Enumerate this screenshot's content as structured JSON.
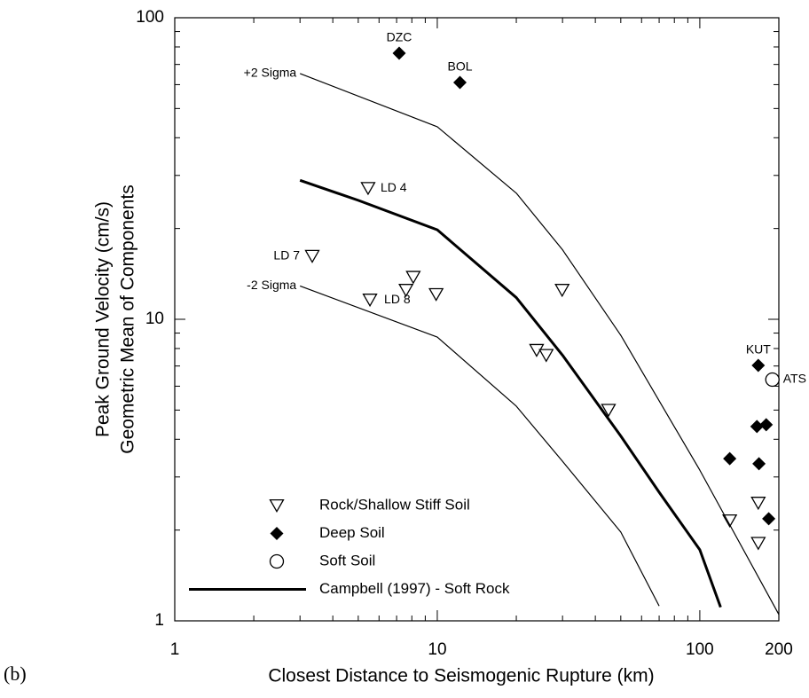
{
  "chart_data": {
    "type": "scatter",
    "log_x": true,
    "log_y": true,
    "xlabel": "Closest Distance to Seismogenic Rupture (km)",
    "ylabel": [
      "Peak Ground Velocity (cm/s)",
      "Geometric Mean of Components"
    ],
    "panel_label": "(b)",
    "xlim": [
      1,
      200
    ],
    "ylim": [
      1,
      100
    ],
    "xticks": [
      1,
      10,
      100,
      200
    ],
    "yticks": [
      1,
      10,
      100
    ],
    "series": [
      {
        "name": "Rock/Shallow Stiff Soil",
        "kind": "marker",
        "marker": "triangle-down",
        "color": "#000000",
        "x": [
          5.45,
          3.34,
          5.54,
          7.6,
          8.1,
          9.9,
          29.9,
          23.9,
          26,
          44.9,
          130,
          167,
          167
        ],
        "values": [
          27.2,
          16.2,
          11.6,
          12.5,
          13.8,
          12.1,
          12.5,
          7.9,
          7.6,
          5.0,
          2.15,
          2.46,
          1.81
        ],
        "point_labels": [
          "LD 4",
          "LD 7",
          "LD 8",
          null,
          null,
          null,
          null,
          null,
          null,
          null,
          null,
          null,
          null
        ]
      },
      {
        "name": "Deep Soil",
        "kind": "marker",
        "marker": "diamond",
        "color": "#000000",
        "x": [
          7.16,
          12.2,
          167,
          130,
          165,
          179,
          168,
          183
        ],
        "values": [
          76.3,
          61,
          7.03,
          3.45,
          4.41,
          4.47,
          3.32,
          2.18
        ],
        "point_labels": [
          "DZC",
          "BOL",
          "KUT",
          null,
          null,
          null,
          null,
          null
        ]
      },
      {
        "name": "Soft Soil",
        "kind": "marker",
        "marker": "circle",
        "color": "#000000",
        "x": [
          189
        ],
        "values": [
          6.31
        ],
        "point_labels": [
          "ATS"
        ]
      },
      {
        "name": "Campbell (1997) - Soft Rock",
        "kind": "line",
        "line_width": 3,
        "color": "#000000",
        "x": [
          3,
          5,
          10,
          20,
          30,
          50,
          70,
          100,
          120
        ],
        "values": [
          28.9,
          24.8,
          19.8,
          11.8,
          7.6,
          4.1,
          2.67,
          1.72,
          1.11
        ]
      }
    ],
    "curves": [
      {
        "label": "+2 Sigma",
        "line_width": 1.2,
        "color": "#000000",
        "x": [
          3,
          10,
          20,
          30,
          50,
          100,
          200
        ],
        "values": [
          65.3,
          43.5,
          26.2,
          17,
          8.85,
          3.16,
          1.05
        ]
      },
      {
        "label": "-2 Sigma",
        "line_width": 1.2,
        "color": "#000000",
        "x": [
          3,
          10,
          20,
          30,
          50,
          70
        ],
        "values": [
          12.9,
          8.73,
          5.15,
          3.38,
          1.97,
          1.12
        ]
      }
    ]
  }
}
